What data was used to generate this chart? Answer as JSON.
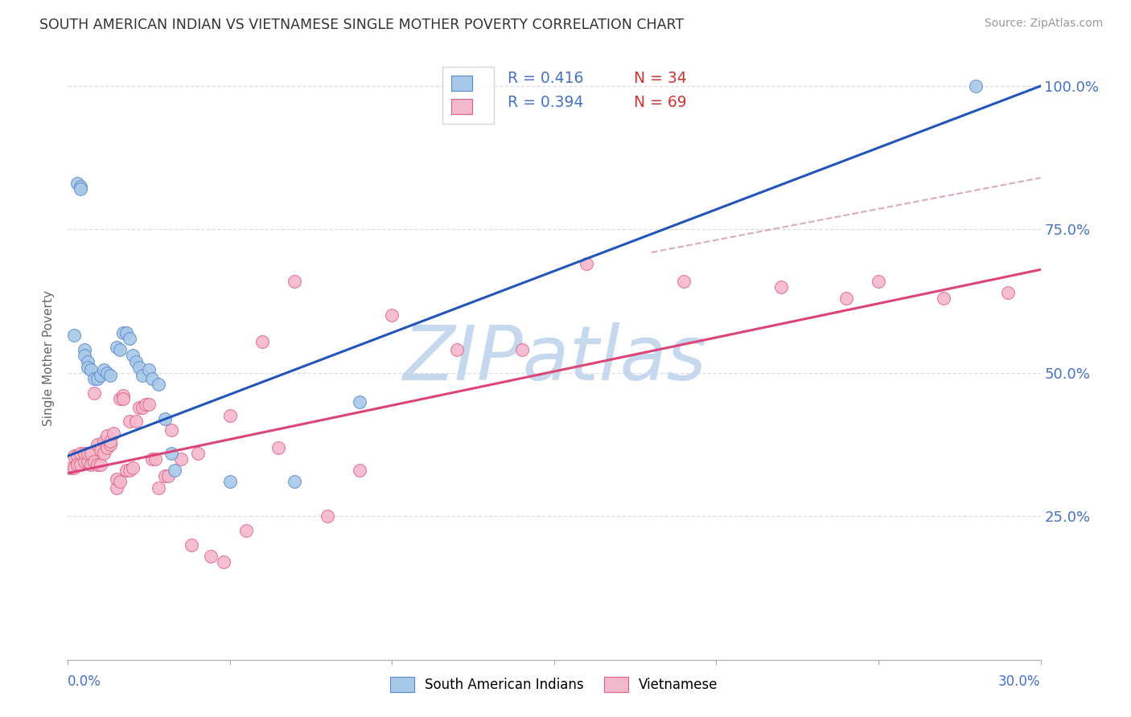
{
  "title": "SOUTH AMERICAN INDIAN VS VIETNAMESE SINGLE MOTHER POVERTY CORRELATION CHART",
  "source": "Source: ZipAtlas.com",
  "ylabel": "Single Mother Poverty",
  "ytick_vals": [
    0.25,
    0.5,
    0.75,
    1.0
  ],
  "ytick_labels": [
    "25.0%",
    "50.0%",
    "75.0%",
    "100.0%"
  ],
  "color_blue_fill": "#a8c8e8",
  "color_pink_fill": "#f4b8cc",
  "color_blue_edge": "#5588cc",
  "color_pink_edge": "#e06080",
  "color_blue_line": "#2255bb",
  "color_pink_line": "#dd4477",
  "color_blue_text": "#4472c4",
  "color_n_text": "#cc3333",
  "watermark_color": "#c5d8ee",
  "grid_color": "#dddddd",
  "xlim": [
    0.0,
    0.3
  ],
  "ylim": [
    0.0,
    1.05
  ],
  "blue_line_y0": 0.355,
  "blue_line_y1": 1.0,
  "pink_line_y0": 0.325,
  "pink_line_y1": 0.68,
  "dash_line_x": [
    0.18,
    0.3
  ],
  "dash_line_y": [
    0.71,
    0.84
  ],
  "blue_x": [
    0.002,
    0.003,
    0.004,
    0.004,
    0.005,
    0.005,
    0.006,
    0.006,
    0.007,
    0.008,
    0.009,
    0.01,
    0.011,
    0.012,
    0.013,
    0.015,
    0.016,
    0.017,
    0.018,
    0.019,
    0.02,
    0.021,
    0.022,
    0.023,
    0.025,
    0.026,
    0.028,
    0.03,
    0.032,
    0.033,
    0.05,
    0.07,
    0.09,
    0.28
  ],
  "blue_y": [
    0.565,
    0.83,
    0.825,
    0.82,
    0.54,
    0.53,
    0.52,
    0.51,
    0.505,
    0.49,
    0.49,
    0.495,
    0.505,
    0.5,
    0.495,
    0.545,
    0.54,
    0.57,
    0.57,
    0.56,
    0.53,
    0.52,
    0.51,
    0.495,
    0.505,
    0.49,
    0.48,
    0.42,
    0.36,
    0.33,
    0.31,
    0.31,
    0.45,
    1.0
  ],
  "pink_x": [
    0.001,
    0.002,
    0.002,
    0.003,
    0.003,
    0.004,
    0.004,
    0.005,
    0.005,
    0.006,
    0.006,
    0.007,
    0.007,
    0.008,
    0.008,
    0.009,
    0.009,
    0.01,
    0.01,
    0.011,
    0.011,
    0.012,
    0.012,
    0.013,
    0.013,
    0.014,
    0.015,
    0.015,
    0.016,
    0.016,
    0.017,
    0.017,
    0.018,
    0.019,
    0.019,
    0.02,
    0.021,
    0.022,
    0.023,
    0.024,
    0.025,
    0.026,
    0.027,
    0.028,
    0.03,
    0.031,
    0.032,
    0.035,
    0.038,
    0.04,
    0.044,
    0.048,
    0.05,
    0.055,
    0.06,
    0.065,
    0.07,
    0.08,
    0.09,
    0.1,
    0.12,
    0.14,
    0.16,
    0.19,
    0.22,
    0.24,
    0.25,
    0.27,
    0.29
  ],
  "pink_y": [
    0.335,
    0.335,
    0.355,
    0.355,
    0.34,
    0.34,
    0.36,
    0.345,
    0.36,
    0.345,
    0.36,
    0.34,
    0.36,
    0.465,
    0.345,
    0.375,
    0.34,
    0.34,
    0.365,
    0.36,
    0.38,
    0.37,
    0.39,
    0.375,
    0.38,
    0.395,
    0.3,
    0.315,
    0.31,
    0.455,
    0.46,
    0.455,
    0.33,
    0.33,
    0.415,
    0.335,
    0.415,
    0.44,
    0.44,
    0.445,
    0.445,
    0.35,
    0.35,
    0.3,
    0.32,
    0.32,
    0.4,
    0.35,
    0.2,
    0.36,
    0.18,
    0.17,
    0.425,
    0.225,
    0.555,
    0.37,
    0.66,
    0.25,
    0.33,
    0.6,
    0.54,
    0.54,
    0.69,
    0.66,
    0.65,
    0.63,
    0.66,
    0.63,
    0.64
  ]
}
